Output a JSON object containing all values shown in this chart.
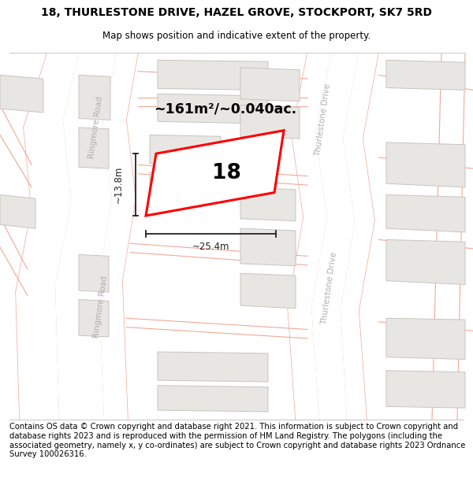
{
  "title": "18, THURLESTONE DRIVE, HAZEL GROVE, STOCKPORT, SK7 5RD",
  "subtitle": "Map shows position and indicative extent of the property.",
  "footer": "Contains OS data © Crown copyright and database right 2021. This information is subject to Crown copyright and database rights 2023 and is reproduced with the permission of HM Land Registry. The polygons (including the associated geometry, namely x, y co-ordinates) are subject to Crown copyright and database rights 2023 Ordnance Survey 100026316.",
  "bg_color": "#ffffff",
  "title_fontsize": 10,
  "subtitle_fontsize": 8.5,
  "footer_fontsize": 7.2,
  "area_text": "~161m²/~0.040ac.",
  "property_number": "18",
  "width_label": "~25.4m",
  "height_label": "~13.8m",
  "road_line_color": "#f0a898",
  "road_fill_color": "#ffffff",
  "road_label_color": "#b0b0b0",
  "building_color": "#e8e6e3",
  "building_outline": "#c8c4bf",
  "dim_color": "#222222"
}
